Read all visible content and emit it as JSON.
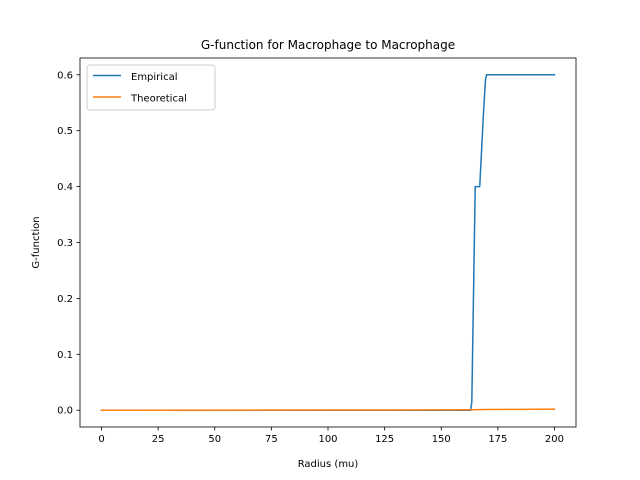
{
  "chart_data": {
    "type": "line",
    "title": "G-function for Macrophage to Macrophage",
    "xlabel": "Radius (mu)",
    "ylabel": "G-function",
    "xlim": [
      -9.5,
      209.5
    ],
    "ylim": [
      -0.03,
      0.63
    ],
    "xticks": [
      0,
      25,
      50,
      75,
      100,
      125,
      150,
      175,
      200
    ],
    "yticks": [
      0.0,
      0.1,
      0.2,
      0.3,
      0.4,
      0.5,
      0.6
    ],
    "ytick_labels": [
      "0.0",
      "0.1",
      "0.2",
      "0.3",
      "0.4",
      "0.5",
      "0.6"
    ],
    "grid": false,
    "legend_position": "top-left",
    "series": [
      {
        "name": "Empirical",
        "color": "#1f77b4",
        "x": [
          0,
          163,
          163.5,
          165,
          165.5,
          167,
          168.5,
          169.5,
          170,
          200
        ],
        "y": [
          0,
          0,
          0.015,
          0.4,
          0.4,
          0.4,
          0.52,
          0.59,
          0.6,
          0.6
        ]
      },
      {
        "name": "Theoretical",
        "color": "#ff7f0e",
        "x": [
          0,
          100,
          150,
          163,
          170,
          185,
          200
        ],
        "y": [
          0,
          0.0003,
          0.0007,
          0.0009,
          0.0012,
          0.0016,
          0.002
        ]
      }
    ]
  }
}
